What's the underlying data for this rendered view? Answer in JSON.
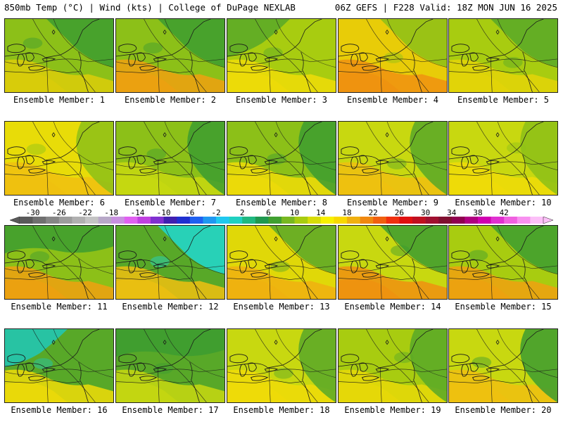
{
  "header": {
    "left": "850mb Temp (°C) | Wind (kts) | College of DuPage NEXLAB",
    "right": "06Z GEFS | F228 Valid: 18Z MON JUN 16 2025"
  },
  "label_prefix": "Ensemble Member: ",
  "members": [
    {
      "label": "Ensemble Member: 1",
      "base": "#8cc018",
      "warm": "#dccc0a",
      "cool": "#3c9c30",
      "cool_corner": "top-right"
    },
    {
      "label": "Ensemble Member: 2",
      "base": "#8cc018",
      "warm": "#f0a010",
      "cool": "#3c9c30",
      "cool_corner": "top-right"
    },
    {
      "label": "Ensemble Member: 3",
      "base": "#a8cc10",
      "warm": "#f0dc08",
      "cool": "#58a828",
      "cool_corner": "top-left"
    },
    {
      "label": "Ensemble Member: 4",
      "base": "#e8cc08",
      "warm": "#f09010",
      "cool": "#8cc018",
      "cool_corner": "top-right"
    },
    {
      "label": "Ensemble Member: 5",
      "base": "#a8cc10",
      "warm": "#e4d408",
      "cool": "#58a828",
      "cool_corner": "top-right"
    },
    {
      "label": "Ensemble Member: 6",
      "base": "#e8dc08",
      "warm": "#f0c010",
      "cool": "#8cc018",
      "cool_corner": "right"
    },
    {
      "label": "Ensemble Member: 7",
      "base": "#8cc018",
      "warm": "#c8d810",
      "cool": "#3c9c30",
      "cool_corner": "right"
    },
    {
      "label": "Ensemble Member: 8",
      "base": "#8cc018",
      "warm": "#f0dc08",
      "cool": "#3c9c30",
      "cool_corner": "right"
    },
    {
      "label": "Ensemble Member: 9",
      "base": "#c8d810",
      "warm": "#f0c010",
      "cool": "#58a828",
      "cool_corner": "right"
    },
    {
      "label": "Ensemble Member: 10",
      "base": "#c8d810",
      "warm": "#f0dc08",
      "cool": "#8cc018",
      "cool_corner": "right"
    },
    {
      "label": "Ensemble Member: 11",
      "base": "#8cc018",
      "warm": "#f0a010",
      "cool": "#3c9c30",
      "cool_corner": "top"
    },
    {
      "label": "Ensemble Member: 12",
      "base": "#58a828",
      "warm": "#f0c010",
      "cool": "#20d8d0",
      "cool_corner": "top-right"
    },
    {
      "label": "Ensemble Member: 13",
      "base": "#e0d808",
      "warm": "#f0b010",
      "cool": "#58a828",
      "cool_corner": "top-right"
    },
    {
      "label": "Ensemble Member: 14",
      "base": "#c8d810",
      "warm": "#f09010",
      "cool": "#3c9c30",
      "cool_corner": "top-right"
    },
    {
      "label": "Ensemble Member: 15",
      "base": "#a8cc10",
      "warm": "#f0a010",
      "cool": "#3c9c30",
      "cool_corner": "top-right"
    },
    {
      "label": "Ensemble Member: 16",
      "base": "#58a828",
      "warm": "#f0dc08",
      "cool": "#20c8b8",
      "cool_corner": "top-left"
    },
    {
      "label": "Ensemble Member: 17",
      "base": "#58a828",
      "warm": "#c8d810",
      "cool": "#3c9c30",
      "cool_corner": "top"
    },
    {
      "label": "Ensemble Member: 18",
      "base": "#c8d810",
      "warm": "#f0dc08",
      "cool": "#58a828",
      "cool_corner": "right"
    },
    {
      "label": "Ensemble Member: 19",
      "base": "#a8cc10",
      "warm": "#e8d808",
      "cool": "#58a828",
      "cool_corner": "right"
    },
    {
      "label": "Ensemble Member: 20",
      "base": "#c8d810",
      "warm": "#f0c010",
      "cool": "#3c9c30",
      "cool_corner": "right"
    }
  ],
  "colorbar": {
    "labels": [
      "-30",
      "-26",
      "-22",
      "-18",
      "-14",
      "-10",
      "-6",
      "-2",
      "2",
      "6",
      "10",
      "14",
      "18",
      "22",
      "26",
      "30",
      "34",
      "38",
      "42"
    ],
    "colors": [
      "#5a5a5a",
      "#707070",
      "#868686",
      "#9c9c9c",
      "#b0b0b0",
      "#c4c4c4",
      "#b8a8c8",
      "#c890e0",
      "#e060f0",
      "#c040e0",
      "#8030d0",
      "#4020b0",
      "#2030d0",
      "#2060f0",
      "#2098f0",
      "#20c8f0",
      "#20d0c0",
      "#20b880",
      "#209850",
      "#40a030",
      "#78b820",
      "#a8cc10",
      "#d8dc08",
      "#f8f000",
      "#f8d800",
      "#f0b010",
      "#f08810",
      "#f06010",
      "#f03010",
      "#e01010",
      "#c01020",
      "#a01030",
      "#801030",
      "#900050",
      "#b00080",
      "#d000b0",
      "#e030d0",
      "#f060e0",
      "#f890f0",
      "#fcc0f8"
    ]
  }
}
